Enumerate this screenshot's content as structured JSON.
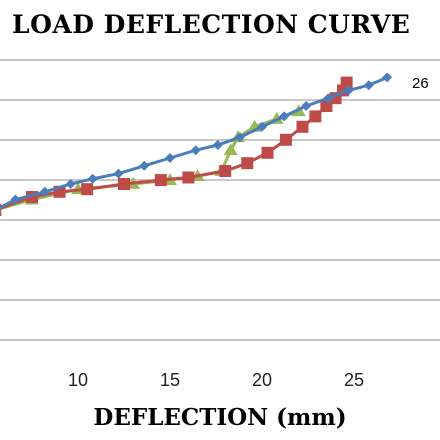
{
  "chart_data": {
    "type": "line",
    "title": "LOAD DEFLECTION CURVE",
    "xlabel": "DEFLECTION (mm)",
    "ylabel": "",
    "xlim": [
      5,
      30
    ],
    "x_ticks": [
      10,
      15,
      20,
      25
    ],
    "grid": "horizontal",
    "annotation": "26",
    "series": [
      {
        "color": "#4a7ebb",
        "marker": "diamond",
        "points": [
          [
            5.5,
            52
          ],
          [
            6.6,
            56
          ],
          [
            8.2,
            59
          ],
          [
            9.6,
            62
          ],
          [
            10.8,
            64
          ],
          [
            12.2,
            66
          ],
          [
            13.6,
            69
          ],
          [
            15.0,
            72
          ],
          [
            16.4,
            75
          ],
          [
            17.6,
            77
          ],
          [
            18.8,
            80
          ],
          [
            20.0,
            84
          ],
          [
            21.2,
            88
          ],
          [
            22.4,
            92
          ],
          [
            23.6,
            95
          ],
          [
            24.7,
            98
          ],
          [
            25.8,
            100
          ],
          [
            26.8,
            103
          ]
        ]
      },
      {
        "color": "#be4b48",
        "marker": "square",
        "points": [
          [
            5.5,
            52
          ],
          [
            7.5,
            57
          ],
          [
            9.0,
            59
          ],
          [
            10.5,
            60
          ],
          [
            12.5,
            62
          ],
          [
            14.5,
            63.5
          ],
          [
            16.0,
            64.5
          ],
          [
            18.0,
            67
          ],
          [
            19.2,
            70
          ],
          [
            20.3,
            74
          ],
          [
            21.3,
            79
          ],
          [
            22.2,
            84
          ],
          [
            22.9,
            88
          ],
          [
            23.5,
            92
          ],
          [
            24.0,
            95
          ],
          [
            24.4,
            98
          ],
          [
            24.6,
            101
          ]
        ]
      },
      {
        "color": "#98b954",
        "marker": "triangle",
        "points": [
          [
            5.5,
            52
          ],
          [
            7.5,
            56
          ],
          [
            10.0,
            60
          ],
          [
            13.0,
            62
          ],
          [
            15.0,
            63.5
          ],
          [
            16.5,
            65
          ],
          [
            17.8,
            67
          ],
          [
            18.3,
            75
          ],
          [
            18.7,
            80
          ],
          [
            19.6,
            84
          ],
          [
            20.8,
            87
          ],
          [
            22.0,
            90
          ]
        ]
      }
    ]
  }
}
